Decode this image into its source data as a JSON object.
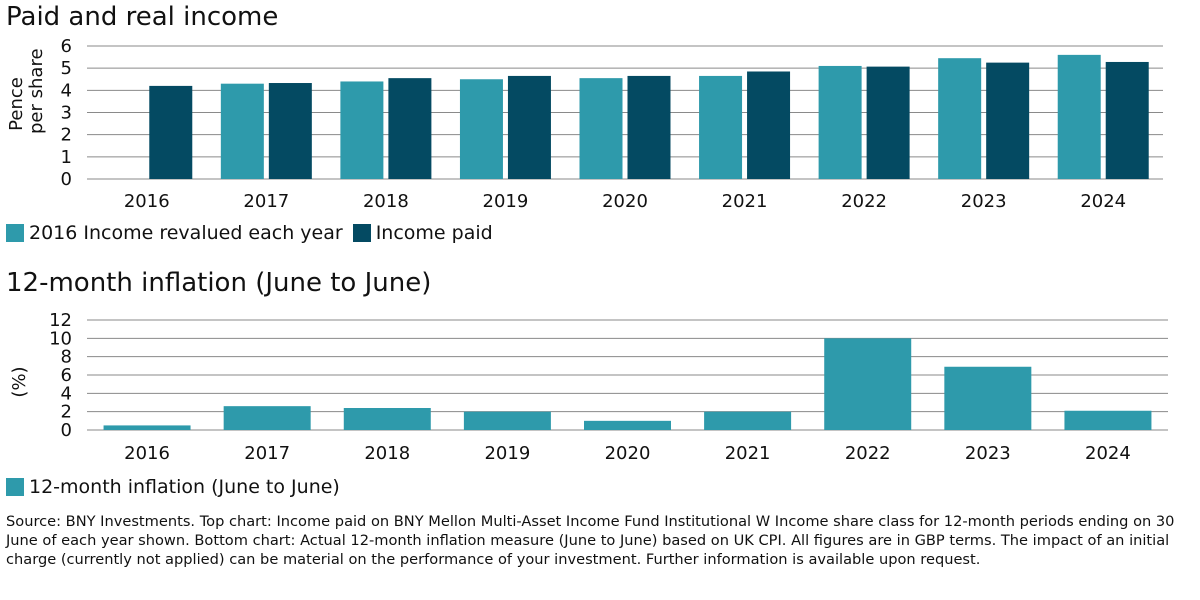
{
  "colors": {
    "revalued": "#2e9aab",
    "paid": "#044a62",
    "inflation": "#2e9aab",
    "gridline": "#8a8a8a"
  },
  "chart_data": [
    {
      "type": "bar",
      "title": "Paid and real income",
      "xlabel": "",
      "ylabel": [
        "Pence",
        "per share"
      ],
      "categories": [
        "2016",
        "2017",
        "2018",
        "2019",
        "2020",
        "2021",
        "2022",
        "2023",
        "2024"
      ],
      "series": [
        {
          "name": "2016 Income revalued each year",
          "color": "#2e9aab",
          "values": [
            null,
            4.3,
            4.4,
            4.5,
            4.55,
            4.65,
            5.1,
            5.45,
            5.6
          ]
        },
        {
          "name": "Income paid",
          "color": "#044a62",
          "values": [
            4.2,
            4.33,
            4.55,
            4.65,
            4.65,
            4.85,
            5.07,
            5.25,
            5.28
          ]
        }
      ],
      "ylim": [
        0,
        6
      ],
      "yticks": [
        0,
        1,
        2,
        3,
        4,
        5,
        6
      ],
      "grid": true,
      "legend": "bottom-left"
    },
    {
      "type": "bar",
      "title": "12-month inflation (June to June)",
      "xlabel": "",
      "ylabel": "(%)",
      "categories": [
        "2016",
        "2017",
        "2018",
        "2019",
        "2020",
        "2021",
        "2022",
        "2023",
        "2024"
      ],
      "series": [
        {
          "name": "12-month inflation (June to June)",
          "color": "#2e9aab",
          "values": [
            0.5,
            2.6,
            2.4,
            2.0,
            1.0,
            2.0,
            10.0,
            6.9,
            2.1
          ]
        }
      ],
      "ylim": [
        0,
        12
      ],
      "yticks": [
        0,
        2,
        4,
        6,
        8,
        10,
        12
      ],
      "grid": true,
      "legend": "bottom-left"
    }
  ],
  "source_note": "Source: BNY Investments. Top chart: Income paid on BNY Mellon Multi-Asset Income Fund Institutional W Income share class for 12-month periods ending on 30 June of each year shown. Bottom chart: Actual 12-month inflation measure (June to June) based on UK CPI. All figures are in GBP terms. The impact of an initial charge (currently not applied) can be material on the performance of your investment. Further information is available upon request."
}
